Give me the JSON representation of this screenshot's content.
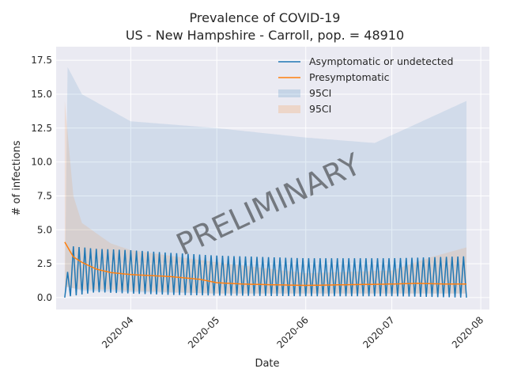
{
  "chart_data": {
    "type": "line",
    "title": "Prevalence of COVID-19",
    "subtitle": "US - New Hampshire - Carroll, pop. = 48910",
    "xlabel": "Date",
    "ylabel": "# of infections",
    "x_range": [
      "2020-03-06",
      "2020-08-04"
    ],
    "ylim": [
      -0.88,
      18.5
    ],
    "grid": true,
    "legend_position": "top-right",
    "watermark": "PRELIMINARY",
    "x_ticks": [
      "2020-04",
      "2020-05",
      "2020-06",
      "2020-07",
      "2020-08"
    ],
    "y_ticks": [
      "0.0",
      "2.5",
      "5.0",
      "7.5",
      "10.0",
      "12.5",
      "15.0",
      "17.5"
    ],
    "date_start": "2020-03-09",
    "date_end": "2020-07-27",
    "series": [
      {
        "name": "Asymptomatic or undetected",
        "color": "#1f77b4",
        "pattern": "daily oscillation",
        "envelope_dates": [
          "2020-03-09",
          "2020-03-11",
          "2020-03-20",
          "2020-04-01",
          "2020-04-15",
          "2020-05-01",
          "2020-06-01",
          "2020-07-01",
          "2020-07-27"
        ],
        "envelope_high": [
          0.0,
          3.8,
          3.6,
          3.5,
          3.3,
          3.1,
          2.9,
          2.9,
          3.05
        ],
        "envelope_low": [
          0.0,
          0.1,
          0.4,
          0.3,
          0.2,
          0.15,
          0.1,
          0.1,
          0.0
        ]
      },
      {
        "name": "Presymptomatic",
        "color": "#ff7f0e",
        "dates": [
          "2020-03-09",
          "2020-03-12",
          "2020-03-15",
          "2020-03-20",
          "2020-03-25",
          "2020-04-01",
          "2020-04-15",
          "2020-04-25",
          "2020-05-01",
          "2020-05-10",
          "2020-05-20",
          "2020-06-01",
          "2020-06-15",
          "2020-07-01",
          "2020-07-10",
          "2020-07-20",
          "2020-07-27"
        ],
        "values": [
          4.1,
          3.0,
          2.6,
          2.1,
          1.85,
          1.7,
          1.55,
          1.35,
          1.1,
          1.0,
          0.95,
          0.9,
          0.95,
          1.0,
          1.05,
          1.0,
          1.0
        ]
      }
    ],
    "bands": [
      {
        "name": "95CI",
        "color": "#1f77b4",
        "dates": [
          "2020-03-09",
          "2020-03-10",
          "2020-03-15",
          "2020-04-01",
          "2020-05-01",
          "2020-06-01",
          "2020-06-25",
          "2020-07-27"
        ],
        "upper": [
          0.0,
          17.0,
          15.0,
          13.0,
          12.5,
          11.8,
          11.4,
          14.5
        ],
        "lower": [
          0.0,
          0.8,
          0.5,
          0.4,
          0.3,
          0.3,
          0.3,
          0.3
        ]
      },
      {
        "name": "95CI",
        "color": "#ff7f0e",
        "dates": [
          "2020-03-09",
          "2020-03-12",
          "2020-03-15",
          "2020-03-25",
          "2020-04-01",
          "2020-05-01",
          "2020-06-01",
          "2020-07-01",
          "2020-07-15",
          "2020-07-27"
        ],
        "upper": [
          14.5,
          7.5,
          5.5,
          4.0,
          3.5,
          2.6,
          1.8,
          2.0,
          3.0,
          3.7
        ],
        "lower": [
          0.8,
          0.7,
          0.6,
          0.6,
          0.5,
          0.3,
          0.3,
          0.3,
          0.3,
          0.3
        ]
      }
    ]
  }
}
